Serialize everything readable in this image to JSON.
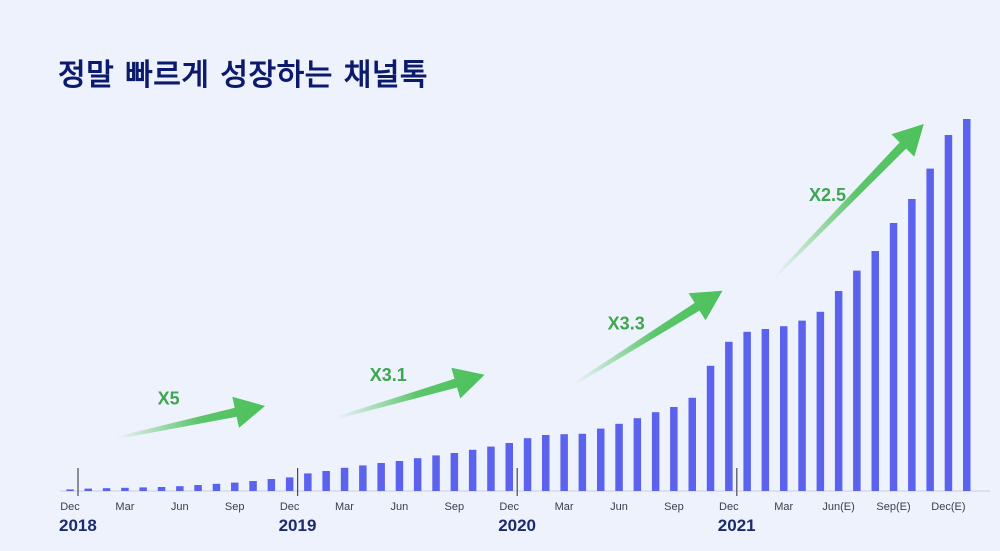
{
  "title": "정말 빠르게 성장하는 채널톡",
  "colors": {
    "bar": "#5b62ee",
    "arrow": "#4cc15a",
    "title": "#0c1a6e",
    "background": "#eef2fd"
  },
  "chart_data": {
    "type": "bar",
    "title": "정말 빠르게 성장하는 채널톡",
    "xlabel": "",
    "ylabel": "",
    "ylim": [
      0,
      100
    ],
    "grid": false,
    "y_axis_visible": false,
    "tick_labels": [
      {
        "index": 0,
        "label": "Dec"
      },
      {
        "index": 3,
        "label": "Mar"
      },
      {
        "index": 6,
        "label": "Jun"
      },
      {
        "index": 9,
        "label": "Sep"
      },
      {
        "index": 12,
        "label": "Dec"
      },
      {
        "index": 15,
        "label": "Mar"
      },
      {
        "index": 18,
        "label": "Jun"
      },
      {
        "index": 21,
        "label": "Sep"
      },
      {
        "index": 24,
        "label": "Dec"
      },
      {
        "index": 27,
        "label": "Mar"
      },
      {
        "index": 30,
        "label": "Jun"
      },
      {
        "index": 33,
        "label": "Sep"
      },
      {
        "index": 36,
        "label": "Dec"
      },
      {
        "index": 39,
        "label": "Mar"
      },
      {
        "index": 42,
        "label": "Jun(E)"
      },
      {
        "index": 45,
        "label": "Sep(E)"
      },
      {
        "index": 48,
        "label": "Dec(E)"
      }
    ],
    "year_labels": [
      {
        "index": 0,
        "label": "2018"
      },
      {
        "index": 12,
        "label": "2019"
      },
      {
        "index": 24,
        "label": "2020"
      },
      {
        "index": 36,
        "label": "2021"
      }
    ],
    "values": [
      0.4,
      0.6,
      0.7,
      0.8,
      0.9,
      1.0,
      1.2,
      1.5,
      1.8,
      2.1,
      2.5,
      3.0,
      3.4,
      4.4,
      5.0,
      5.8,
      6.4,
      7.0,
      7.5,
      8.2,
      8.9,
      9.5,
      10.3,
      11.1,
      12.0,
      13.2,
      14.0,
      14.2,
      14.3,
      15.6,
      16.8,
      18.2,
      19.7,
      21.0,
      23.3,
      31.3,
      37.3,
      39.8,
      40.5,
      41.2,
      42.6,
      44.8,
      50.0,
      55.1,
      60.0,
      67.0,
      73.0,
      80.6,
      89.0,
      93.0
    ],
    "annotations": [
      {
        "text": "X5",
        "from_index": 3,
        "to_index": 10
      },
      {
        "text": "X3.1",
        "from_index": 15,
        "to_index": 22
      },
      {
        "text": "X3.3",
        "from_index": 28,
        "to_index": 35
      },
      {
        "text": "X2.5",
        "from_index": 39,
        "to_index": 46
      }
    ]
  }
}
